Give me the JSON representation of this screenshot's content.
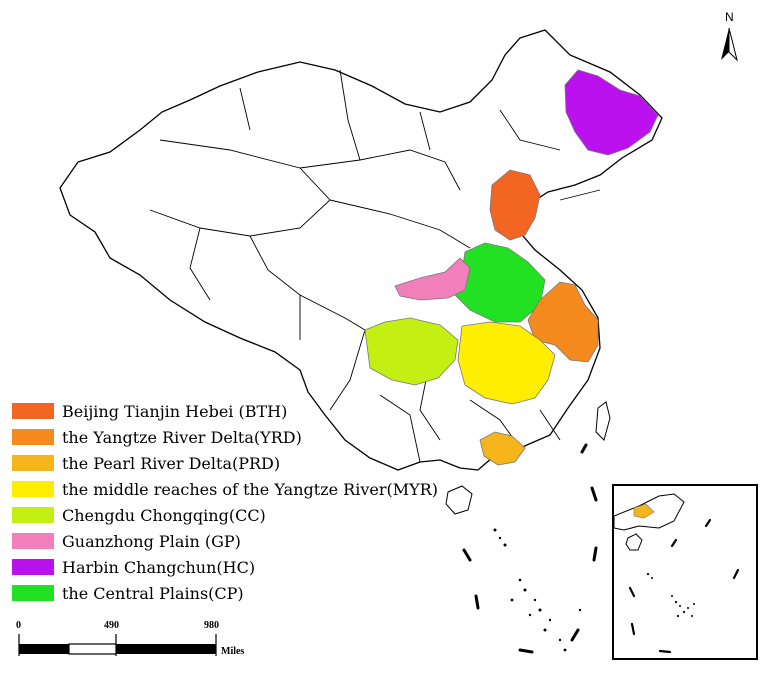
{
  "map": {
    "colors": {
      "boundary": "#555555",
      "land": "#ffffff",
      "bth": "#f26522",
      "yrd": "#f58a1f",
      "prd": "#f7b51c",
      "myr": "#ffee00",
      "cc": "#c3ef12",
      "gp": "#f07fba",
      "hc": "#bb11ee",
      "cp": "#22e022"
    }
  },
  "legend": {
    "items": [
      {
        "label": "Beijing Tianjin Hebei (BTH)",
        "color": "#f26522"
      },
      {
        "label": "the Yangtze River Delta(YRD)",
        "color": "#f58a1f"
      },
      {
        "label": "the Pearl River Delta(PRD)",
        "color": "#f7b51c"
      },
      {
        "label": "the middle reaches of the Yangtze River(MYR)",
        "color": "#ffee00"
      },
      {
        "label": "Chengdu Chongqing(CC)",
        "color": "#c3ef12"
      },
      {
        "label": "Guanzhong Plain (GP)",
        "color": "#f07fba"
      },
      {
        "label": "Harbin Changchun(HC)",
        "color": "#bb11ee"
      },
      {
        "label": "the Central Plains(CP)",
        "color": "#22e022"
      }
    ]
  },
  "scale_bar": {
    "tick_0": "0",
    "tick_1": "490",
    "tick_2": "980",
    "unit": "Miles"
  },
  "north_arrow": {
    "label": "N"
  }
}
